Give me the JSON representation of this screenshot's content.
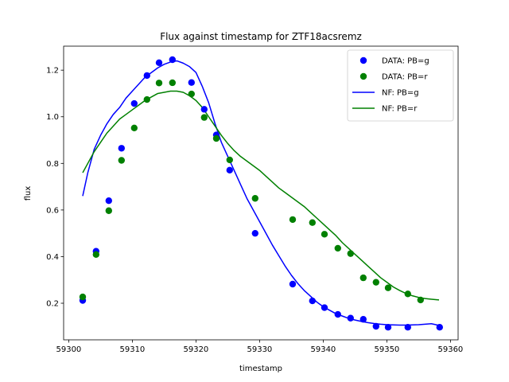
{
  "chart_data": {
    "type": "scatter",
    "title": "Flux against timestamp for ZTF18acsremz",
    "xlabel": "timestamp",
    "ylabel": "flux",
    "xlim": [
      59299.2,
      59361.2
    ],
    "ylim": [
      0.043,
      1.303
    ],
    "x_ticks": [
      59300,
      59310,
      59320,
      59330,
      59340,
      59350,
      59360
    ],
    "y_ticks": [
      0.2,
      0.4,
      0.6,
      0.8,
      1.0,
      1.2
    ],
    "x_tick_labels": [
      "59300",
      "59310",
      "59320",
      "59330",
      "59340",
      "59350",
      "59360"
    ],
    "y_tick_labels": [
      "0.2",
      "0.4",
      "0.6",
      "0.8",
      "1.0",
      "1.2"
    ],
    "grid": false,
    "legend_position": "top-right",
    "series": [
      {
        "name": "DATA: PB=g",
        "kind": "scatter",
        "color": "#0000ff",
        "points": [
          [
            59302.2,
            0.212
          ],
          [
            59304.3,
            0.423
          ],
          [
            59306.3,
            0.64
          ],
          [
            59308.3,
            0.865
          ],
          [
            59310.3,
            1.057
          ],
          [
            59312.3,
            1.177
          ],
          [
            59314.2,
            1.232
          ],
          [
            59316.3,
            1.245
          ],
          [
            59319.3,
            1.147
          ],
          [
            59321.3,
            1.032
          ],
          [
            59323.2,
            0.922
          ],
          [
            59325.3,
            0.771
          ],
          [
            59329.3,
            0.5
          ],
          [
            59335.2,
            0.282
          ],
          [
            59338.3,
            0.21
          ],
          [
            59340.2,
            0.181
          ],
          [
            59342.3,
            0.152
          ],
          [
            59344.3,
            0.136
          ],
          [
            59346.3,
            0.131
          ],
          [
            59348.3,
            0.101
          ],
          [
            59350.2,
            0.097
          ],
          [
            59353.3,
            0.097
          ],
          [
            59358.3,
            0.097
          ]
        ]
      },
      {
        "name": "DATA: PB=r",
        "kind": "scatter",
        "color": "#008000",
        "points": [
          [
            59302.2,
            0.227
          ],
          [
            59304.3,
            0.409
          ],
          [
            59306.3,
            0.597
          ],
          [
            59308.3,
            0.813
          ],
          [
            59310.3,
            0.952
          ],
          [
            59312.3,
            1.074
          ],
          [
            59314.2,
            1.145
          ],
          [
            59316.3,
            1.146
          ],
          [
            59319.3,
            1.098
          ],
          [
            59321.3,
            0.997
          ],
          [
            59323.2,
            0.907
          ],
          [
            59325.3,
            0.815
          ],
          [
            59329.3,
            0.65
          ],
          [
            59335.2,
            0.559
          ],
          [
            59338.3,
            0.546
          ],
          [
            59340.2,
            0.496
          ],
          [
            59342.3,
            0.436
          ],
          [
            59344.3,
            0.413
          ],
          [
            59346.3,
            0.309
          ],
          [
            59348.3,
            0.29
          ],
          [
            59350.2,
            0.266
          ],
          [
            59353.3,
            0.24
          ],
          [
            59355.3,
            0.214
          ]
        ]
      },
      {
        "name": "NF: PB=g",
        "kind": "line",
        "color": "#0000ff",
        "points": [
          [
            59302.2,
            0.66
          ],
          [
            59303.0,
            0.76
          ],
          [
            59304.0,
            0.86
          ],
          [
            59305.0,
            0.92
          ],
          [
            59306.0,
            0.97
          ],
          [
            59307.0,
            1.01
          ],
          [
            59308.0,
            1.04
          ],
          [
            59309.0,
            1.08
          ],
          [
            59310.0,
            1.11
          ],
          [
            59311.0,
            1.14
          ],
          [
            59312.0,
            1.17
          ],
          [
            59313.0,
            1.19
          ],
          [
            59314.0,
            1.21
          ],
          [
            59315.0,
            1.225
          ],
          [
            59316.0,
            1.235
          ],
          [
            59317.0,
            1.24
          ],
          [
            59318.0,
            1.23
          ],
          [
            59319.0,
            1.215
          ],
          [
            59320.0,
            1.19
          ],
          [
            59321.0,
            1.13
          ],
          [
            59322.0,
            1.06
          ],
          [
            59323.0,
            0.97
          ],
          [
            59324.0,
            0.89
          ],
          [
            59325.0,
            0.83
          ],
          [
            59326.0,
            0.77
          ],
          [
            59327.0,
            0.71
          ],
          [
            59328.0,
            0.65
          ],
          [
            59329.0,
            0.6
          ],
          [
            59330.0,
            0.55
          ],
          [
            59331.0,
            0.5
          ],
          [
            59332.0,
            0.45
          ],
          [
            59333.0,
            0.405
          ],
          [
            59334.0,
            0.36
          ],
          [
            59335.0,
            0.32
          ],
          [
            59336.0,
            0.285
          ],
          [
            59337.0,
            0.255
          ],
          [
            59338.0,
            0.23
          ],
          [
            59339.0,
            0.205
          ],
          [
            59340.0,
            0.185
          ],
          [
            59341.0,
            0.17
          ],
          [
            59342.0,
            0.155
          ],
          [
            59343.0,
            0.145
          ],
          [
            59344.0,
            0.135
          ],
          [
            59345.0,
            0.128
          ],
          [
            59346.0,
            0.122
          ],
          [
            59347.0,
            0.117
          ],
          [
            59348.0,
            0.113
          ],
          [
            59349.0,
            0.11
          ],
          [
            59350.0,
            0.108
          ],
          [
            59351.0,
            0.107
          ],
          [
            59352.0,
            0.106
          ],
          [
            59353.0,
            0.106
          ],
          [
            59354.0,
            0.107
          ],
          [
            59355.0,
            0.108
          ],
          [
            59356.0,
            0.11
          ],
          [
            59357.0,
            0.112
          ],
          [
            59358.2,
            0.105
          ]
        ]
      },
      {
        "name": "NF: PB=r",
        "kind": "line",
        "color": "#008000",
        "points": [
          [
            59302.2,
            0.76
          ],
          [
            59303.0,
            0.8
          ],
          [
            59304.0,
            0.85
          ],
          [
            59305.0,
            0.89
          ],
          [
            59306.0,
            0.93
          ],
          [
            59307.0,
            0.96
          ],
          [
            59308.0,
            0.99
          ],
          [
            59309.0,
            1.01
          ],
          [
            59310.0,
            1.03
          ],
          [
            59311.0,
            1.05
          ],
          [
            59312.0,
            1.07
          ],
          [
            59313.0,
            1.085
          ],
          [
            59314.0,
            1.1
          ],
          [
            59315.0,
            1.105
          ],
          [
            59316.0,
            1.11
          ],
          [
            59317.0,
            1.11
          ],
          [
            59318.0,
            1.105
          ],
          [
            59319.0,
            1.09
          ],
          [
            59320.0,
            1.07
          ],
          [
            59321.0,
            1.04
          ],
          [
            59322.0,
            1.0
          ],
          [
            59323.0,
            0.96
          ],
          [
            59324.0,
            0.92
          ],
          [
            59325.0,
            0.885
          ],
          [
            59326.0,
            0.855
          ],
          [
            59327.0,
            0.83
          ],
          [
            59328.0,
            0.81
          ],
          [
            59329.0,
            0.79
          ],
          [
            59330.0,
            0.77
          ],
          [
            59331.0,
            0.745
          ],
          [
            59332.0,
            0.72
          ],
          [
            59333.0,
            0.695
          ],
          [
            59334.0,
            0.675
          ],
          [
            59335.0,
            0.655
          ],
          [
            59336.0,
            0.635
          ],
          [
            59337.0,
            0.615
          ],
          [
            59338.0,
            0.59
          ],
          [
            59339.0,
            0.565
          ],
          [
            59340.0,
            0.54
          ],
          [
            59341.0,
            0.515
          ],
          [
            59342.0,
            0.49
          ],
          [
            59343.0,
            0.46
          ],
          [
            59344.0,
            0.435
          ],
          [
            59345.0,
            0.41
          ],
          [
            59346.0,
            0.385
          ],
          [
            59347.0,
            0.36
          ],
          [
            59348.0,
            0.335
          ],
          [
            59349.0,
            0.31
          ],
          [
            59350.0,
            0.29
          ],
          [
            59351.0,
            0.27
          ],
          [
            59352.0,
            0.255
          ],
          [
            59353.0,
            0.242
          ],
          [
            59354.0,
            0.232
          ],
          [
            59355.0,
            0.225
          ],
          [
            59356.0,
            0.22
          ],
          [
            59357.0,
            0.217
          ],
          [
            59358.2,
            0.214
          ]
        ]
      }
    ]
  }
}
